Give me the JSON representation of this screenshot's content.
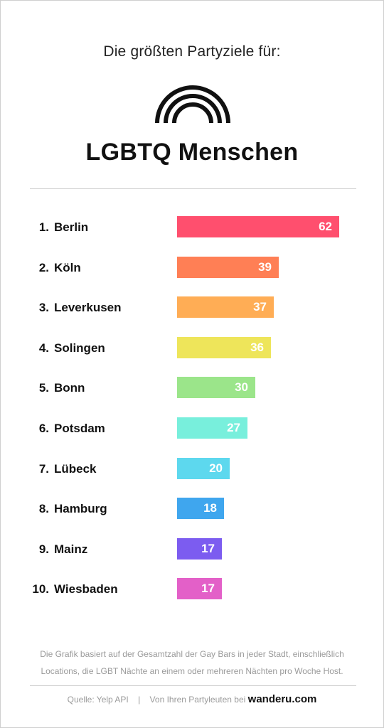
{
  "header": {
    "subtitle": "Die größten Partyziele für:",
    "title": "LGBTQ Menschen",
    "logo_icon": "rainbow-arcs-icon"
  },
  "chart_data": {
    "type": "bar",
    "orientation": "horizontal",
    "categories": [
      "Berlin",
      "Köln",
      "Leverkusen",
      "Solingen",
      "Bonn",
      "Potsdam",
      "Lübeck",
      "Hamburg",
      "Mainz",
      "Wiesbaden"
    ],
    "ranks": [
      "1.",
      "2.",
      "3.",
      "4.",
      "5.",
      "6.",
      "7.",
      "8.",
      "9.",
      "10."
    ],
    "values": [
      62,
      39,
      37,
      36,
      30,
      27,
      20,
      18,
      17,
      17
    ],
    "colors": [
      "#ff4f6e",
      "#ff7f55",
      "#ffad55",
      "#eee55a",
      "#9be58a",
      "#78efdc",
      "#5dd8ee",
      "#3fa6ee",
      "#7c5cf0",
      "#e360c8"
    ],
    "data_labels": true,
    "grid": false,
    "legend": "none"
  },
  "footer": {
    "note_line1": "Die Grafik basiert auf der Gesamtzahl der Gay Bars in jeder Stadt, einschließlich",
    "note_line2": "Locations, die LGBT Nächte an einem oder mehreren Nächten pro Woche Host.",
    "source": "Quelle: Yelp API",
    "separator": "|",
    "credit_prefix": "Von Ihren Partyleuten bei",
    "brand": "wanderu.com"
  }
}
